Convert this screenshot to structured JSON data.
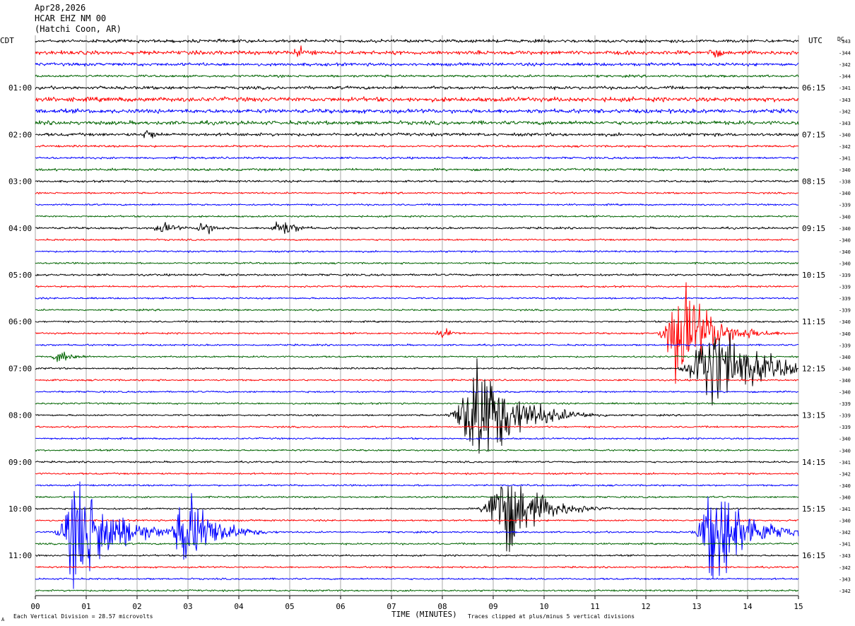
{
  "header": {
    "date": "Apr28,2026",
    "station": "HCAR EHZ NM 00",
    "location": "(Hatchi Coon, AR)"
  },
  "labels": {
    "left_tz": "CDT",
    "right_tz": "UTC",
    "dc_label": "DC",
    "xlabel": "TIME (MINUTES)",
    "footer_left": "Each Vertical Division =   28.57 microvolts",
    "footer_right": "Traces clipped at plus/minus 5 vertical divisions",
    "corner_mark": "A"
  },
  "chart_data": {
    "type": "line",
    "title": "HCAR EHZ NM 00",
    "xlabel": "TIME (MINUTES)",
    "xlim": [
      0,
      15
    ],
    "x_ticks": [
      "00",
      "01",
      "02",
      "03",
      "04",
      "05",
      "06",
      "07",
      "08",
      "09",
      "10",
      "11",
      "12",
      "13",
      "14",
      "15"
    ],
    "trace_count": 48,
    "trace_colors": [
      "#000000",
      "#ff0000",
      "#0000ff",
      "#006400"
    ],
    "left_time_labels": [
      {
        "trace": 4,
        "text": "01:00"
      },
      {
        "trace": 8,
        "text": "02:00"
      },
      {
        "trace": 12,
        "text": "03:00"
      },
      {
        "trace": 16,
        "text": "04:00"
      },
      {
        "trace": 20,
        "text": "05:00"
      },
      {
        "trace": 24,
        "text": "06:00"
      },
      {
        "trace": 28,
        "text": "07:00"
      },
      {
        "trace": 32,
        "text": "08:00"
      },
      {
        "trace": 36,
        "text": "09:00"
      },
      {
        "trace": 40,
        "text": "10:00"
      },
      {
        "trace": 44,
        "text": "11:00"
      }
    ],
    "right_time_labels": [
      {
        "trace": 4,
        "text": "06:15"
      },
      {
        "trace": 8,
        "text": "07:15"
      },
      {
        "trace": 12,
        "text": "08:15"
      },
      {
        "trace": 16,
        "text": "09:15"
      },
      {
        "trace": 20,
        "text": "10:15"
      },
      {
        "trace": 24,
        "text": "11:15"
      },
      {
        "trace": 28,
        "text": "12:15"
      },
      {
        "trace": 32,
        "text": "13:15"
      },
      {
        "trace": 36,
        "text": "14:15"
      },
      {
        "trace": 40,
        "text": "15:15"
      },
      {
        "trace": 44,
        "text": "16:15"
      }
    ],
    "dc_offsets": [
      "-343",
      "-344",
      "-342",
      "-344",
      "-341",
      "-343",
      "-342",
      "-343",
      "-340",
      "-342",
      "-341",
      "-340",
      "-338",
      "-340",
      "-339",
      "-340",
      "-340",
      "-340",
      "-340",
      "-340",
      "-339",
      "-339",
      "-339",
      "-339",
      "-340",
      "-340",
      "-339",
      "-340",
      "-340",
      "-340",
      "-340",
      "-339",
      "-339",
      "-339",
      "-340",
      "-340",
      "-341",
      "-342",
      "-340",
      "-340",
      "-341",
      "-340",
      "-342",
      "-341",
      "-343",
      "-342",
      "-343",
      "-342"
    ],
    "noise_levels": [
      0.9,
      1.1,
      0.9,
      0.7,
      0.9,
      1.3,
      1.2,
      1.1,
      0.9,
      0.6,
      0.6,
      0.7,
      0.6,
      0.5,
      0.5,
      0.5,
      0.6,
      0.5,
      0.5,
      0.5,
      0.6,
      0.5,
      0.5,
      0.5,
      0.5,
      0.5,
      0.5,
      0.5,
      0.5,
      0.5,
      0.5,
      0.5,
      0.5,
      0.5,
      0.5,
      0.5,
      0.5,
      0.5,
      0.5,
      0.5,
      0.5,
      0.5,
      0.5,
      0.5,
      0.5,
      0.5,
      0.5,
      0.5
    ],
    "events": [
      {
        "trace": 1,
        "t": 5.2,
        "amp": 6,
        "dur": 0.5
      },
      {
        "trace": 1,
        "t": 13.3,
        "amp": 6,
        "dur": 0.4
      },
      {
        "trace": 8,
        "t": 2.2,
        "amp": 7,
        "dur": 0.3
      },
      {
        "trace": 16,
        "t": 2.5,
        "amp": 6,
        "dur": 0.5
      },
      {
        "trace": 16,
        "t": 3.3,
        "amp": 8,
        "dur": 0.4
      },
      {
        "trace": 16,
        "t": 4.8,
        "amp": 10,
        "dur": 0.5
      },
      {
        "trace": 25,
        "t": 8.0,
        "amp": 8,
        "dur": 0.3
      },
      {
        "trace": 25,
        "t": 12.7,
        "amp": 52,
        "dur": 0.9
      },
      {
        "trace": 27,
        "t": 0.5,
        "amp": 6,
        "dur": 0.5
      },
      {
        "trace": 28,
        "t": 13.3,
        "amp": 45,
        "dur": 1.3
      },
      {
        "trace": 32,
        "t": 8.7,
        "amp": 60,
        "dur": 1.1
      },
      {
        "trace": 40,
        "t": 9.2,
        "amp": 48,
        "dur": 0.9
      },
      {
        "trace": 42,
        "t": 0.9,
        "amp": 58,
        "dur": 1.0
      },
      {
        "trace": 42,
        "t": 3.0,
        "amp": 40,
        "dur": 0.8
      },
      {
        "trace": 42,
        "t": 13.4,
        "amp": 55,
        "dur": 0.9
      }
    ]
  }
}
